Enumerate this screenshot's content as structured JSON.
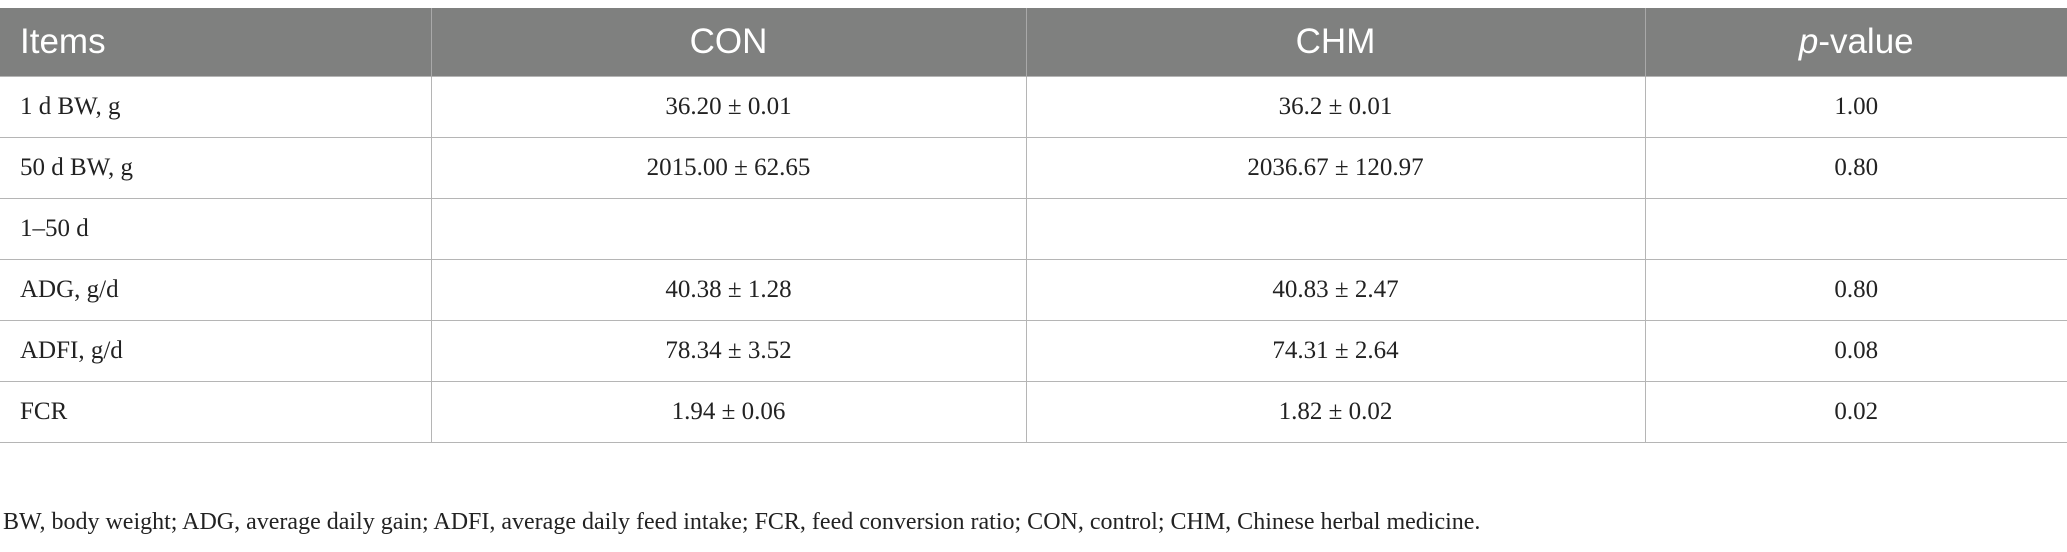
{
  "table": {
    "headers": {
      "items": "Items",
      "con": "CON",
      "chm": "CHM",
      "p_prefix": "p",
      "p_suffix": "-value"
    },
    "rows": [
      {
        "item": "1 d BW, g",
        "con": "36.20 ± 0.01",
        "chm": "36.2 ± 0.01",
        "p": "1.00"
      },
      {
        "item": "50 d BW, g",
        "con": "2015.00 ± 62.65",
        "chm": "2036.67 ± 120.97",
        "p": "0.80"
      },
      {
        "item": "1–50 d",
        "con": "",
        "chm": "",
        "p": ""
      },
      {
        "item": "ADG, g/d",
        "con": "40.38 ± 1.28",
        "chm": "40.83 ± 2.47",
        "p": "0.80"
      },
      {
        "item": "ADFI, g/d",
        "con": "78.34 ± 3.52",
        "chm": "74.31 ± 2.64",
        "p": "0.08"
      },
      {
        "item": "FCR",
        "con": "1.94 ± 0.06",
        "chm": "1.82 ± 0.02",
        "p": "0.02"
      }
    ]
  },
  "footnote": "BW, body weight; ADG, average daily gain; ADFI, average daily feed intake; FCR, feed conversion ratio; CON, control; CHM, Chinese herbal medicine.",
  "colors": {
    "header_bg": "#7f807f",
    "header_text": "#ffffff",
    "grid": "#b5b5b5",
    "body_text": "#222222"
  }
}
